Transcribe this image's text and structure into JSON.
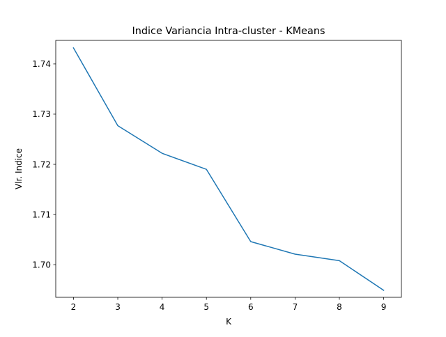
{
  "chart_data": {
    "type": "line",
    "title": "Indice Variancia Intra-cluster - KMeans",
    "xlabel": "K",
    "ylabel": "Vlr. Indice",
    "xlim": [
      1.6,
      9.4
    ],
    "ylim": [
      1.6935,
      1.7447
    ],
    "x_ticks": [
      2,
      3,
      4,
      5,
      6,
      7,
      8,
      9
    ],
    "y_ticks": [
      1.7,
      1.71,
      1.72,
      1.73,
      1.74
    ],
    "y_tick_labels": [
      "1.70",
      "1.71",
      "1.72",
      "1.73",
      "1.74"
    ],
    "grid": false,
    "line_color": "#1f77b4",
    "series": [
      {
        "x": [
          2,
          3,
          4,
          5,
          6,
          7,
          8,
          9
        ],
        "values": [
          1.7432,
          1.7277,
          1.7222,
          1.719,
          1.7046,
          1.7021,
          1.7008,
          1.6949
        ]
      }
    ]
  }
}
